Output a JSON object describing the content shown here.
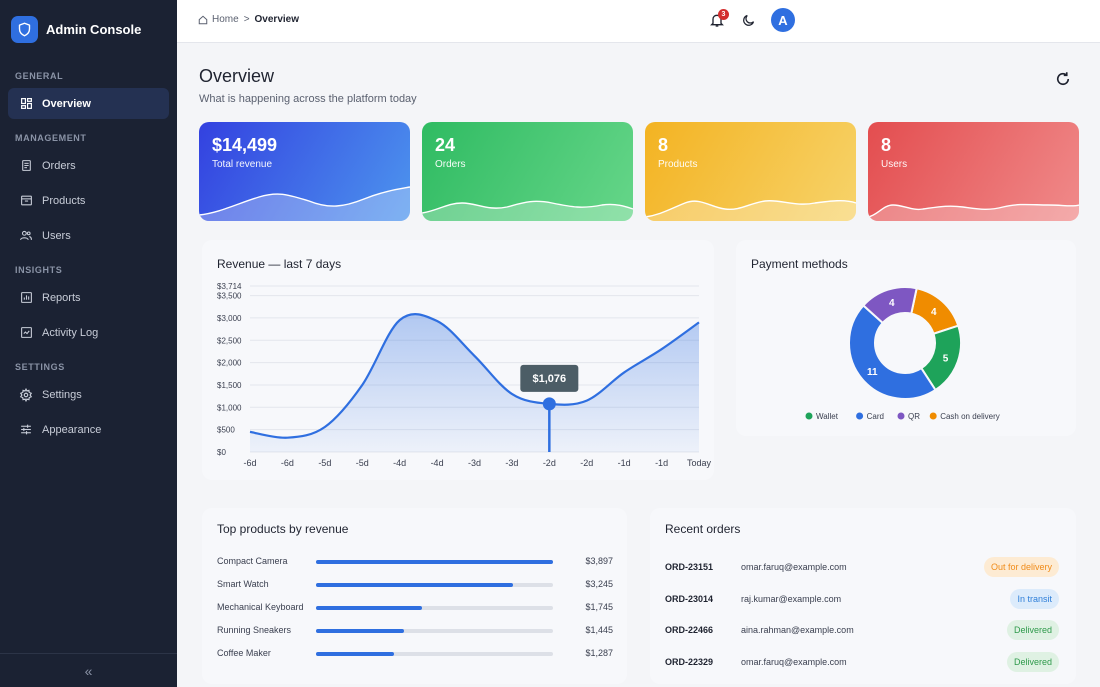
{
  "app": {
    "title": "Admin Console"
  },
  "sidebar": {
    "sections": [
      {
        "label": "GENERAL"
      },
      {
        "label": "MANAGEMENT"
      },
      {
        "label": "INSIGHTS"
      },
      {
        "label": "SETTINGS"
      }
    ],
    "items": [
      {
        "label": "Overview",
        "icon": "dashboard-icon",
        "active": true
      },
      {
        "label": "Orders",
        "icon": "orders-icon"
      },
      {
        "label": "Products",
        "icon": "products-icon"
      },
      {
        "label": "Users",
        "icon": "users-icon"
      },
      {
        "label": "Reports",
        "icon": "reports-icon"
      },
      {
        "label": "Activity Log",
        "icon": "activity-log-icon"
      },
      {
        "label": "Settings",
        "icon": "gear-icon"
      },
      {
        "label": "Appearance",
        "icon": "sliders-icon"
      }
    ],
    "collapse_glyph": "«"
  },
  "topbar": {
    "breadcrumb": {
      "home": "Home",
      "separator": ">",
      "current": "Overview"
    },
    "notifications_count": "3",
    "avatar_letter": "A"
  },
  "header": {
    "title": "Overview",
    "subtitle": "What is happening across the platform today"
  },
  "kpis": [
    {
      "value": "$14,499",
      "label": "Total revenue",
      "color_from": "#3341e0",
      "color_to": "#4d95ee"
    },
    {
      "value": "24",
      "label": "Orders",
      "color_from": "#2fbb62",
      "color_to": "#66d689"
    },
    {
      "value": "8",
      "label": "Products",
      "color_from": "#f3b322",
      "color_to": "#f7d36a"
    },
    {
      "value": "8",
      "label": "Users",
      "color_from": "#e34d4f",
      "color_to": "#f08a8a"
    }
  ],
  "revenue_panel": {
    "title": "Revenue — last 7 days",
    "tooltip": "$1,076"
  },
  "payment_panel": {
    "title": "Payment methods"
  },
  "products_panel": {
    "title": "Top products by revenue",
    "rows": [
      {
        "name": "Compact Camera",
        "value": "$3,897",
        "fraction": 1.0
      },
      {
        "name": "Smart Watch",
        "value": "$3,245",
        "fraction": 0.833
      },
      {
        "name": "Mechanical Keyboard",
        "value": "$1,745",
        "fraction": 0.448
      },
      {
        "name": "Running Sneakers",
        "value": "$1,445",
        "fraction": 0.371
      },
      {
        "name": "Coffee Maker",
        "value": "$1,287",
        "fraction": 0.33
      }
    ]
  },
  "orders_panel": {
    "title": "Recent orders",
    "rows": [
      {
        "id": "ORD-23151",
        "email": "omar.faruq@example.com",
        "status": "Out for delivery",
        "bg": "#fdebd3",
        "fg": "#f08c1a"
      },
      {
        "id": "ORD-23014",
        "email": "raj.kumar@example.com",
        "status": "In transit",
        "bg": "#dcebfb",
        "fg": "#2f7fd9"
      },
      {
        "id": "ORD-22466",
        "email": "aina.rahman@example.com",
        "status": "Delivered",
        "bg": "#dff1e3",
        "fg": "#2f9a4c"
      },
      {
        "id": "ORD-22329",
        "email": "omar.faruq@example.com",
        "status": "Delivered",
        "bg": "#dff1e3",
        "fg": "#2f9a4c"
      }
    ]
  },
  "chart_data": [
    {
      "type": "area",
      "title": "Revenue — last 7 days",
      "x": [
        "-6d",
        "-6d",
        "-5d",
        "-5d",
        "-4d",
        "-4d",
        "-3d",
        "-3d",
        "-2d",
        "-2d",
        "-1d",
        "-1d",
        "Today"
      ],
      "series": [
        {
          "values": [
            450,
            320,
            560,
            1500,
            2950,
            2930,
            2150,
            1300,
            1076,
            1150,
            1780,
            2300,
            2900
          ]
        }
      ],
      "y_ticks": [
        "$0",
        "$500",
        "$1,000",
        "$1,500",
        "$2,000",
        "$2,500",
        "$3,000",
        "$3,500",
        "$3,714"
      ],
      "ylim": [
        0,
        3714
      ],
      "highlight": {
        "index": 8,
        "label": "$1,076"
      },
      "grid": true,
      "color": "#2f6fe0"
    },
    {
      "type": "pie",
      "title": "Payment methods",
      "donut": true,
      "slices": [
        {
          "label": "Wallet",
          "value": 5,
          "color": "#1ea35a"
        },
        {
          "label": "Card",
          "value": 11,
          "color": "#2f6fe0"
        },
        {
          "label": "QR",
          "value": 4,
          "color": "#7e57c2"
        },
        {
          "label": "Cash on delivery",
          "value": 4,
          "color": "#f08c00"
        }
      ],
      "legend": "bottom"
    }
  ]
}
